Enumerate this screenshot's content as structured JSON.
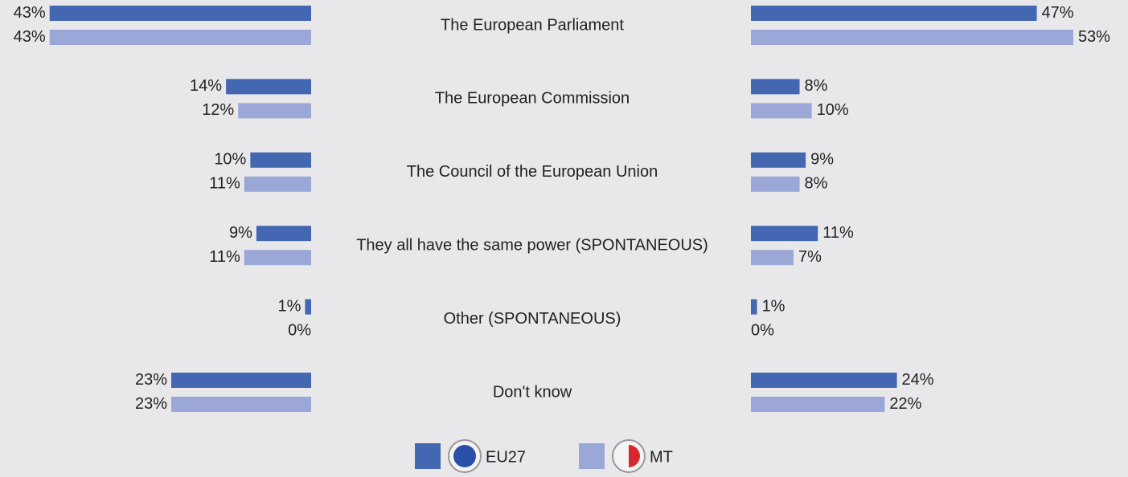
{
  "chart_data": [
    {
      "type": "bar",
      "categories": [
        "The European Parliament",
        "The European Commission",
        "The Council of the European Union",
        "They all have the same power (SPONTANEOUS)",
        "Other (SPONTANEOUS)",
        "Don't know"
      ],
      "series": [
        {
          "name": "EU27",
          "color": "#4367b1",
          "values": [
            43,
            14,
            10,
            9,
            1,
            23
          ],
          "value_labels": [
            "43%",
            "14%",
            "10%",
            "9%",
            "1%",
            "23%"
          ]
        },
        {
          "name": "MT",
          "color": "#9ba7d7",
          "values": [
            43,
            12,
            11,
            11,
            0,
            23
          ],
          "value_labels": [
            "43%",
            "12%",
            "11%",
            "11%",
            "0%",
            "23%"
          ]
        }
      ]
    },
    {
      "type": "bar",
      "series": [
        {
          "color": "#4367b1",
          "values": [
            47,
            8,
            9,
            11,
            1,
            24
          ],
          "value_labels": [
            "47%",
            "8%",
            "9%",
            "11%",
            "1%",
            "24%"
          ]
        },
        {
          "color": "#9ba7d7",
          "values": [
            53,
            10,
            8,
            7,
            0,
            22
          ],
          "value_labels": [
            "53%",
            "10%",
            "8%",
            "7%",
            "0%",
            "22%"
          ]
        }
      ]
    }
  ]
}
